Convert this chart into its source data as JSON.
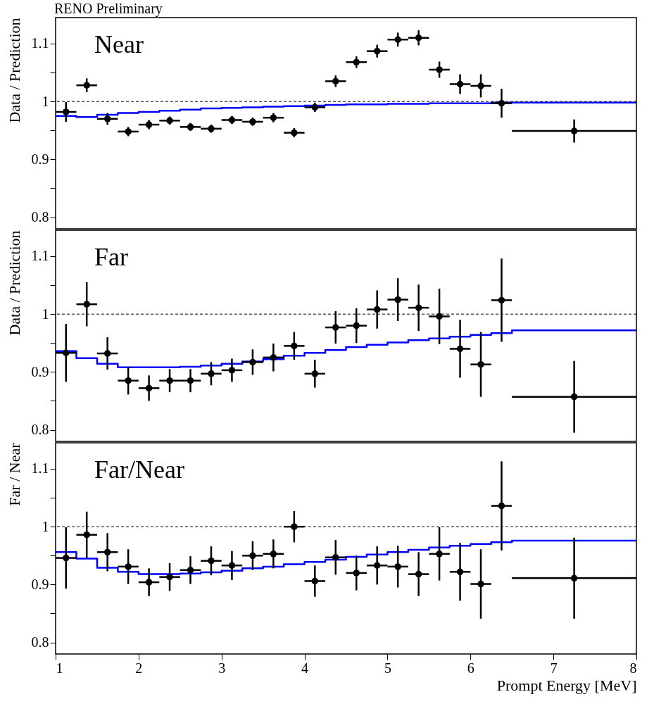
{
  "chart_data": [
    {
      "type": "scatter",
      "title": "RENO Preliminary",
      "ylabel": "Data / Prediction",
      "annotations": [
        "Near"
      ],
      "tick_labels": "y",
      "xlim": [
        1,
        8
      ],
      "ylim": [
        0.78,
        1.145
      ],
      "yticks": [
        0.8,
        {
          "value": 0.85,
          "label": null
        },
        0.9,
        {
          "value": 0.95,
          "label": null
        },
        1,
        {
          "value": 1.05,
          "label": null
        },
        1.1
      ],
      "ref_lines": [
        {
          "axis": "y",
          "value": 1,
          "line_style": "dashed",
          "color": "#000000"
        }
      ],
      "series": [
        {
          "type": "step",
          "color": "#0000ff",
          "x": [
            1,
            1.25,
            1.5,
            1.75,
            2,
            2.25,
            2.5,
            2.75,
            3,
            3.25,
            3.5,
            3.75,
            4,
            4.25,
            4.5,
            4.75,
            5,
            5.25,
            5.5,
            5.75,
            6,
            6.25,
            6.5,
            8
          ],
          "values": [
            0.975,
            0.973,
            0.977,
            0.98,
            0.982,
            0.984,
            0.986,
            0.988,
            0.989,
            0.99,
            0.991,
            0.992,
            0.993,
            0.994,
            0.995,
            0.995,
            0.996,
            0.996,
            0.997,
            0.997,
            0.997,
            0.998,
            0.998,
            0.998
          ]
        },
        {
          "type": "scatter",
          "color": "#000000",
          "x": [
            1.125,
            1.375,
            1.625,
            1.875,
            2.125,
            2.375,
            2.625,
            2.875,
            3.125,
            3.375,
            3.625,
            3.875,
            4.125,
            4.375,
            4.625,
            4.875,
            5.125,
            5.375,
            5.625,
            5.875,
            6.125,
            6.375,
            7.25
          ],
          "marker": "circle",
          "values": [
            0.982,
            1.028,
            0.97,
            0.948,
            0.96,
            0.967,
            0.956,
            0.953,
            0.968,
            0.965,
            0.972,
            0.946,
            0.99,
            1.035,
            1.068,
            1.087,
            1.107,
            1.11,
            1.055,
            1.03,
            1.027,
            0.997,
            0.949
          ],
          "errors": [
            0.017,
            0.012,
            0.01,
            0.008,
            0.008,
            0.007,
            0.007,
            0.007,
            0.007,
            0.007,
            0.008,
            0.008,
            0.008,
            0.01,
            0.01,
            0.011,
            0.012,
            0.013,
            0.014,
            0.017,
            0.02,
            0.025,
            0.02
          ],
          "xerrors": [
            0.125,
            0.125,
            0.125,
            0.125,
            0.125,
            0.125,
            0.125,
            0.125,
            0.125,
            0.125,
            0.125,
            0.125,
            0.125,
            0.125,
            0.125,
            0.125,
            0.125,
            0.125,
            0.125,
            0.125,
            0.125,
            0.125,
            0.75
          ]
        }
      ]
    },
    {
      "type": "scatter",
      "ylabel": "Data / Prediction",
      "annotations": [
        "Far"
      ],
      "tick_labels": "y",
      "xlim": [
        1,
        8
      ],
      "ylim": [
        0.78,
        1.145
      ],
      "yticks": [
        0.8,
        {
          "value": 0.85,
          "label": null
        },
        0.9,
        {
          "value": 0.95,
          "label": null
        },
        1,
        {
          "value": 1.05,
          "label": null
        },
        1.1
      ],
      "ref_lines": [
        {
          "axis": "y",
          "value": 1,
          "line_style": "dashed",
          "color": "#000000"
        }
      ],
      "series": [
        {
          "type": "step",
          "color": "#0000ff",
          "x": [
            1,
            1.25,
            1.5,
            1.75,
            2,
            2.25,
            2.5,
            2.75,
            3,
            3.25,
            3.5,
            3.75,
            4,
            4.25,
            4.5,
            4.75,
            5,
            5.25,
            5.5,
            5.75,
            6,
            6.25,
            6.5,
            8
          ],
          "values": [
            0.936,
            0.924,
            0.914,
            0.908,
            0.908,
            0.908,
            0.909,
            0.911,
            0.914,
            0.918,
            0.922,
            0.928,
            0.933,
            0.938,
            0.943,
            0.947,
            0.951,
            0.955,
            0.958,
            0.961,
            0.964,
            0.967,
            0.972,
            0.972
          ]
        },
        {
          "type": "scatter",
          "color": "#000000",
          "x": [
            1.125,
            1.375,
            1.625,
            1.875,
            2.125,
            2.375,
            2.625,
            2.875,
            3.125,
            3.375,
            3.625,
            3.875,
            4.125,
            4.375,
            4.625,
            4.875,
            5.125,
            5.375,
            5.625,
            5.875,
            6.125,
            6.375,
            7.25
          ],
          "marker": "circle",
          "values": [
            0.933,
            1.017,
            0.932,
            0.885,
            0.872,
            0.885,
            0.885,
            0.897,
            0.903,
            0.917,
            0.925,
            0.945,
            0.897,
            0.977,
            0.98,
            1.008,
            1.025,
            1.011,
            0.996,
            0.94,
            0.913,
            1.024,
            0.857
          ],
          "errors": [
            0.05,
            0.038,
            0.028,
            0.024,
            0.022,
            0.02,
            0.02,
            0.02,
            0.02,
            0.022,
            0.024,
            0.024,
            0.024,
            0.028,
            0.03,
            0.033,
            0.037,
            0.04,
            0.048,
            0.05,
            0.056,
            0.072,
            0.062
          ],
          "xerrors": [
            0.125,
            0.125,
            0.125,
            0.125,
            0.125,
            0.125,
            0.125,
            0.125,
            0.125,
            0.125,
            0.125,
            0.125,
            0.125,
            0.125,
            0.125,
            0.125,
            0.125,
            0.125,
            0.125,
            0.125,
            0.125,
            0.125,
            0.75
          ]
        }
      ]
    },
    {
      "type": "scatter",
      "xlabel": "Prompt Energy [MeV]",
      "ylabel": "Far / Near",
      "annotations": [
        "Far/Near"
      ],
      "xlim": [
        1,
        8
      ],
      "ylim": [
        0.78,
        1.145
      ],
      "xticks": [
        1,
        2,
        3,
        4,
        5,
        6,
        7,
        8
      ],
      "yticks": [
        0.8,
        {
          "value": 0.85,
          "label": null
        },
        0.9,
        {
          "value": 0.95,
          "label": null
        },
        1,
        {
          "value": 1.05,
          "label": null
        },
        1.1
      ],
      "ref_lines": [
        {
          "axis": "y",
          "value": 1,
          "line_style": "dashed",
          "color": "#000000"
        }
      ],
      "series": [
        {
          "type": "step",
          "color": "#0000ff",
          "x": [
            1,
            1.25,
            1.5,
            1.75,
            2,
            2.25,
            2.5,
            2.75,
            3,
            3.25,
            3.5,
            3.75,
            4,
            4.25,
            4.5,
            4.75,
            5,
            5.25,
            5.5,
            5.75,
            6,
            6.25,
            6.5,
            8
          ],
          "values": [
            0.956,
            0.945,
            0.929,
            0.922,
            0.918,
            0.918,
            0.919,
            0.921,
            0.924,
            0.928,
            0.931,
            0.935,
            0.939,
            0.943,
            0.948,
            0.952,
            0.956,
            0.96,
            0.964,
            0.967,
            0.97,
            0.973,
            0.976,
            0.976
          ]
        },
        {
          "type": "scatter",
          "color": "#000000",
          "x": [
            1.125,
            1.375,
            1.625,
            1.875,
            2.125,
            2.375,
            2.625,
            2.875,
            3.125,
            3.375,
            3.625,
            3.875,
            4.125,
            4.375,
            4.625,
            4.875,
            5.125,
            5.375,
            5.625,
            5.875,
            6.125,
            6.375,
            7.25
          ],
          "marker": "circle",
          "values": [
            0.946,
            0.986,
            0.956,
            0.931,
            0.904,
            0.913,
            0.925,
            0.941,
            0.933,
            0.95,
            0.953,
            1.0,
            0.906,
            0.947,
            0.92,
            0.933,
            0.931,
            0.918,
            0.953,
            0.922,
            0.901,
            1.036,
            0.911
          ],
          "errors": [
            0.053,
            0.04,
            0.033,
            0.03,
            0.024,
            0.024,
            0.024,
            0.025,
            0.025,
            0.025,
            0.025,
            0.027,
            0.027,
            0.03,
            0.03,
            0.033,
            0.036,
            0.038,
            0.046,
            0.05,
            0.06,
            0.077,
            0.07
          ],
          "xerrors": [
            0.125,
            0.125,
            0.125,
            0.125,
            0.125,
            0.125,
            0.125,
            0.125,
            0.125,
            0.125,
            0.125,
            0.125,
            0.125,
            0.125,
            0.125,
            0.125,
            0.125,
            0.125,
            0.125,
            0.125,
            0.125,
            0.125,
            0.75
          ]
        }
      ]
    }
  ]
}
